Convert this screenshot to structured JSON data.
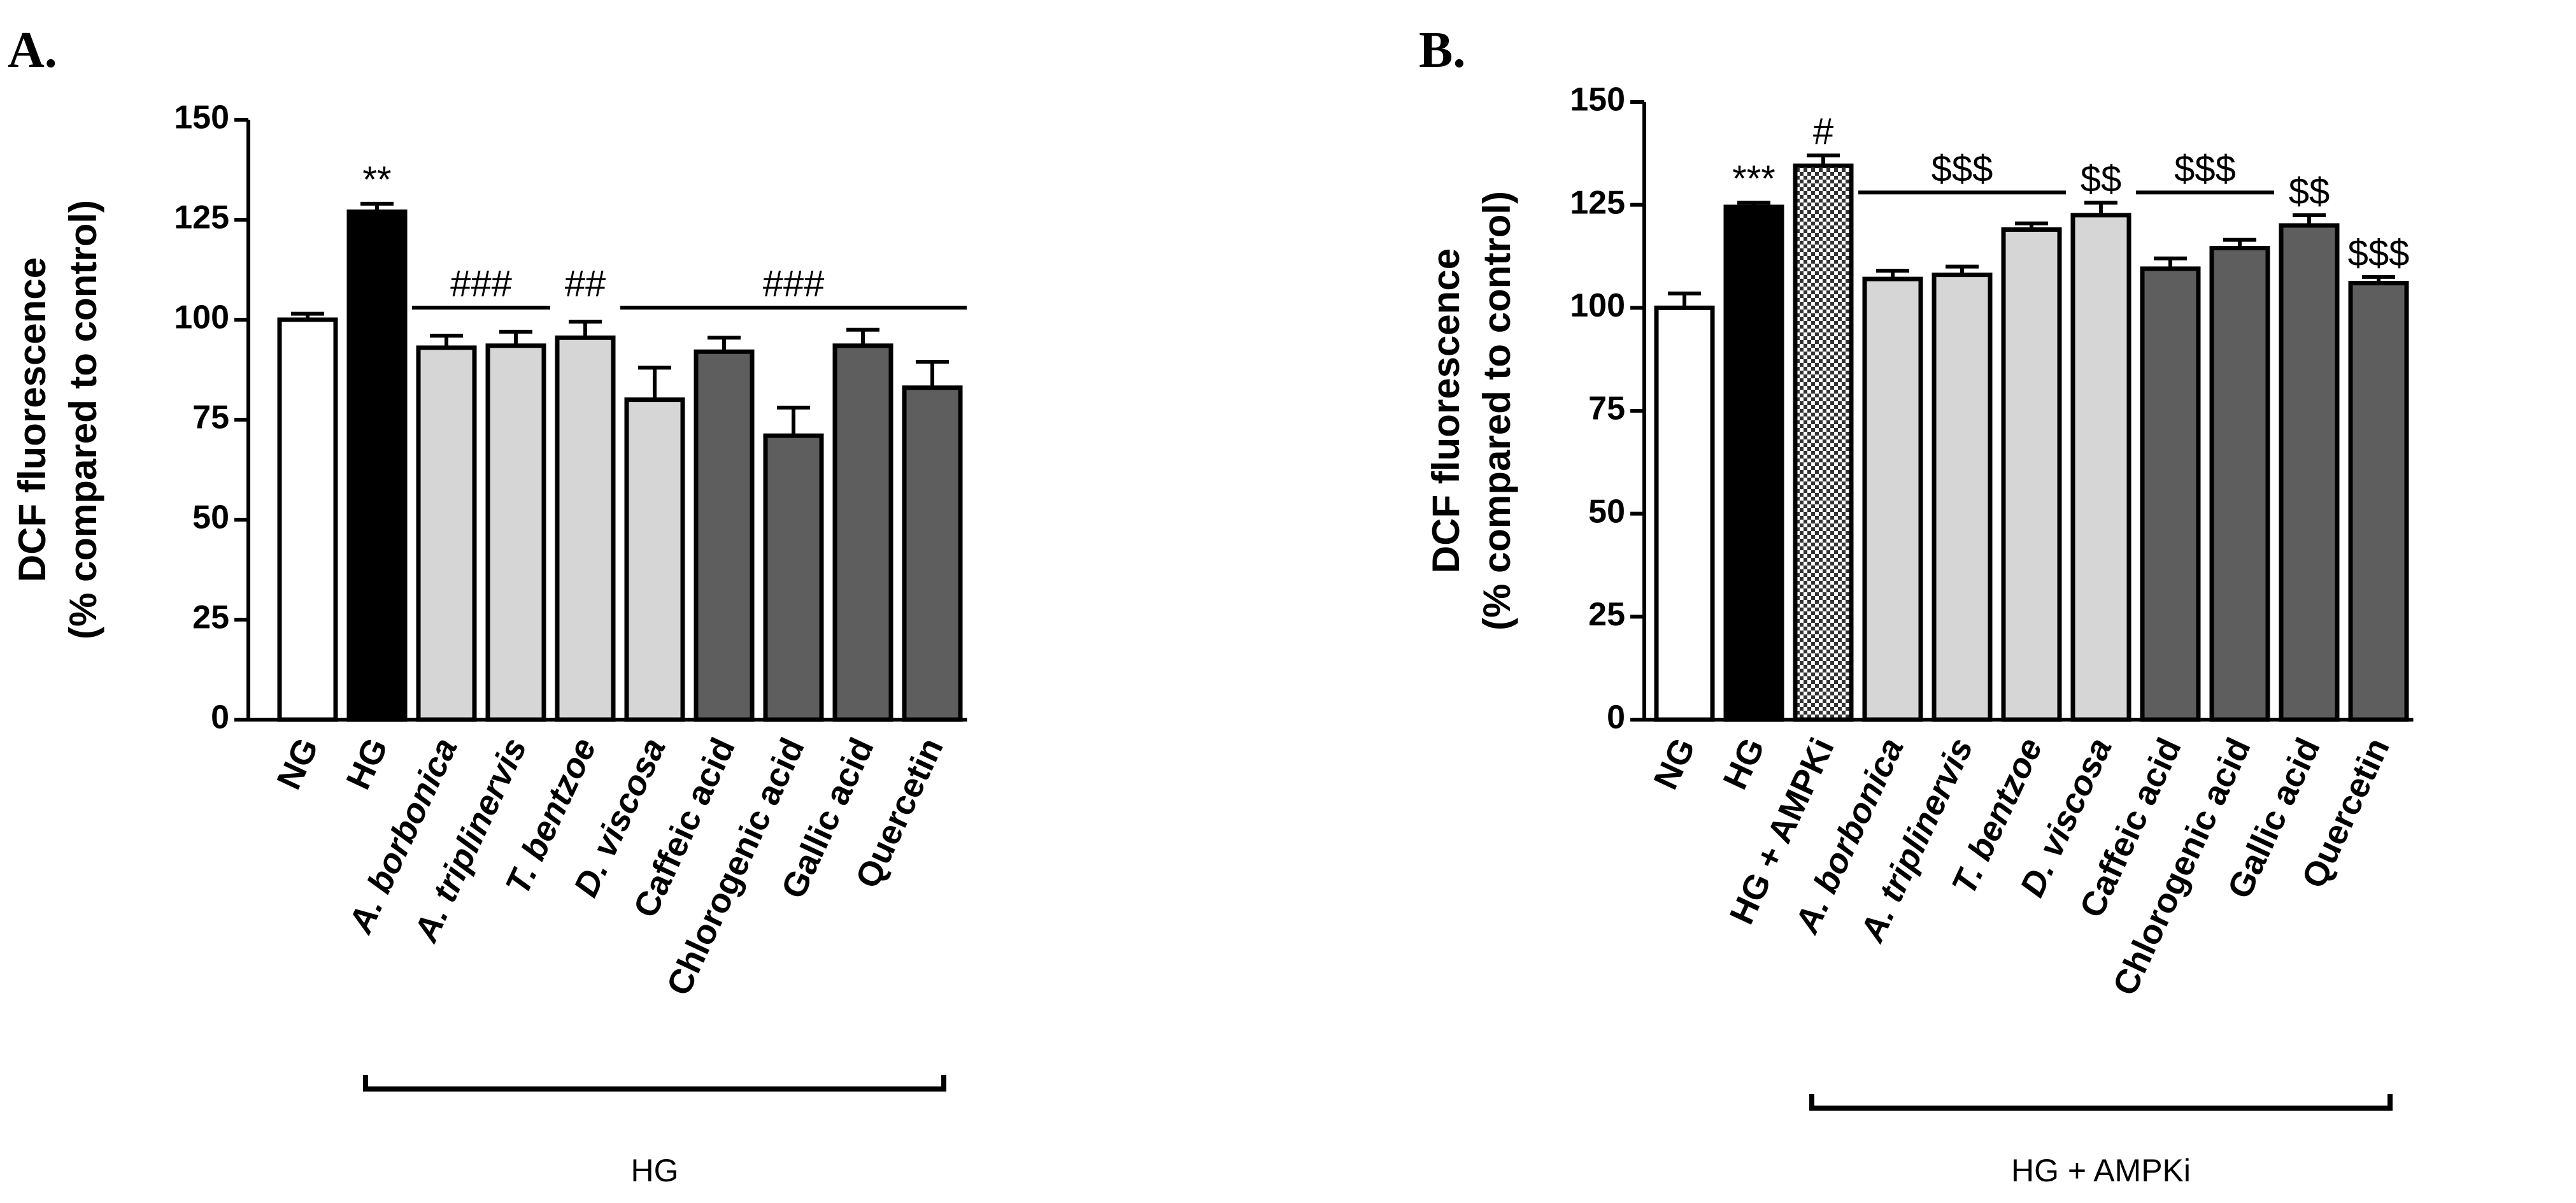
{
  "chart_data": [
    {
      "type": "bar",
      "panel_label": "A.",
      "ylabel": [
        "DCF fluorescence",
        "(% compared to control)"
      ],
      "ylim": [
        0,
        150
      ],
      "yticks": [
        0,
        25,
        50,
        75,
        100,
        125,
        150
      ],
      "categories": [
        "NG",
        "HG",
        "A. borbonica",
        "A. triplinervis",
        "T. bentzoe",
        "D. viscosa",
        "Caffeic acid",
        "Chlorogenic acid",
        "Gallic acid",
        "Quercetin"
      ],
      "italic": [
        false,
        false,
        true,
        true,
        true,
        true,
        false,
        false,
        false,
        false
      ],
      "values": [
        100,
        127,
        93,
        93.5,
        95.5,
        80,
        92,
        71,
        93.5,
        83
      ],
      "errors": [
        1.5,
        2,
        3,
        3.5,
        4,
        8,
        3.5,
        7,
        4,
        6.5
      ],
      "fills": [
        "white",
        "black",
        "lightgray",
        "lightgray",
        "lightgray",
        "lightgray",
        "darkgray",
        "darkgray",
        "darkgray",
        "darkgray"
      ],
      "bar_annotations": [
        {
          "bar": 1,
          "text": "**"
        }
      ],
      "bracket_annotations": [
        {
          "from": 2,
          "to": 3,
          "text": "###",
          "level": 103
        },
        {
          "from": 4,
          "to": 4,
          "text": "##",
          "level": 103
        },
        {
          "from": 5,
          "to": 9,
          "text": "###",
          "level": 103
        }
      ],
      "group_label": {
        "from": 1,
        "to": 9,
        "text": "HG"
      },
      "colors": {
        "white": "#ffffff",
        "black": "#000000",
        "lightgray": "#d6d6d6",
        "darkgray": "#5e5e5e",
        "stroke": "#000000"
      }
    },
    {
      "type": "bar",
      "panel_label": "B.",
      "ylabel": [
        "DCF fluorescence",
        "(% compared to control)"
      ],
      "ylim": [
        0,
        150
      ],
      "yticks": [
        0,
        25,
        50,
        75,
        100,
        125,
        150
      ],
      "categories": [
        "NG",
        "HG",
        "HG + AMPKi",
        "A. borbonica",
        "A. triplinervis",
        "T. bentzoe",
        "D. viscosa",
        "Caffeic acid",
        "Chlorogenic acid",
        "Gallic acid",
        "Quercetin"
      ],
      "italic": [
        false,
        false,
        false,
        true,
        true,
        true,
        true,
        false,
        false,
        false,
        false
      ],
      "values": [
        100,
        124.5,
        134.5,
        107,
        108,
        119,
        122.5,
        109.5,
        114.5,
        120,
        106
      ],
      "errors": [
        3.5,
        1,
        2.5,
        2,
        2,
        1.5,
        3,
        2.5,
        2,
        2.5,
        1.5
      ],
      "fills": [
        "white",
        "black",
        "checker",
        "lightgray",
        "lightgray",
        "lightgray",
        "lightgray",
        "darkgray",
        "darkgray",
        "darkgray",
        "darkgray"
      ],
      "bar_annotations": [
        {
          "bar": 1,
          "text": "***"
        },
        {
          "bar": 2,
          "text": "#"
        },
        {
          "bar": 6,
          "text": "$$"
        },
        {
          "bar": 9,
          "text": "$$"
        },
        {
          "bar": 10,
          "text": "$$$"
        }
      ],
      "bracket_annotations": [
        {
          "from": 3,
          "to": 5,
          "text": "$$$",
          "level": 128
        },
        {
          "from": 7,
          "to": 8,
          "text": "$$$",
          "level": 128
        }
      ],
      "group_label": {
        "from": 2,
        "to": 10,
        "text": "HG + AMPKi"
      },
      "colors": {
        "white": "#ffffff",
        "black": "#000000",
        "lightgray": "#d6d6d6",
        "darkgray": "#5e5e5e",
        "stroke": "#000000"
      }
    }
  ]
}
